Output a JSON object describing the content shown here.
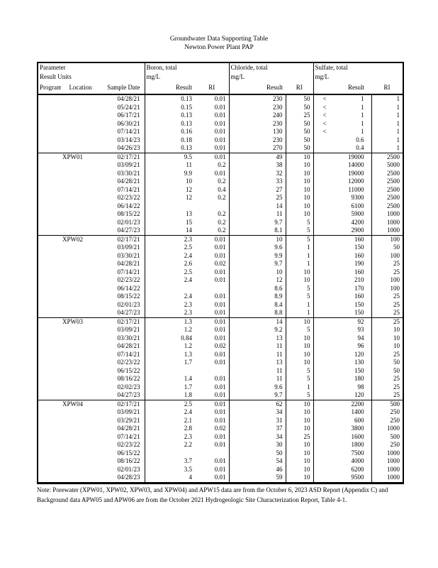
{
  "title": {
    "line1": "Groundwater Data Supporting Table",
    "line2": "Newton Power Plant PAP"
  },
  "table": {
    "header": {
      "parameter": "Parameter",
      "result_units": "Result Units",
      "program_id": "Program ID",
      "location": "Location",
      "sample_date": "Sample Date",
      "result_label": "Result",
      "ri_label": "RI",
      "analytes": [
        {
          "name": "Boron, total",
          "units": "mg/L"
        },
        {
          "name": "Chloride, total",
          "units": "mg/L"
        },
        {
          "name": "Sulfate, total",
          "units": "mg/L"
        }
      ]
    },
    "columns": [
      "program_id",
      "location",
      "sample_date",
      "boron_result",
      "boron_ri",
      "chloride_result",
      "chloride_ri",
      "sulfate_qualifier",
      "sulfate_result",
      "sulfate_ri"
    ],
    "blocks": [
      {
        "location": "",
        "rows": [
          [
            "04/28/21",
            "0.13",
            "0.01",
            "230",
            "50",
            "<",
            "1",
            "1"
          ],
          [
            "05/24/21",
            "0.15",
            "0.01",
            "230",
            "50",
            "<",
            "1",
            "1"
          ],
          [
            "06/17/21",
            "0.13",
            "0.01",
            "240",
            "25",
            "<",
            "1",
            "1"
          ],
          [
            "06/30/21",
            "0.13",
            "0.01",
            "230",
            "50",
            "<",
            "1",
            "1"
          ],
          [
            "07/14/21",
            "0.16",
            "0.01",
            "130",
            "50",
            "<",
            "1",
            "1"
          ],
          [
            "03/14/23",
            "0.18",
            "0.01",
            "230",
            "50",
            "",
            "0.6",
            "1"
          ],
          [
            "04/26/23",
            "0.13",
            "0.01",
            "270",
            "50",
            "",
            "0.4",
            "1"
          ]
        ]
      },
      {
        "location": "XPW01",
        "rows": [
          [
            "02/17/21",
            "9.5",
            "0.01",
            "49",
            "10",
            "",
            "19000",
            "2500"
          ],
          [
            "03/09/21",
            "11",
            "0.2",
            "38",
            "10",
            "",
            "14000",
            "5000"
          ],
          [
            "03/30/21",
            "9.9",
            "0.01",
            "32",
            "10",
            "",
            "19000",
            "2500"
          ],
          [
            "04/28/21",
            "10",
            "0.2",
            "33",
            "10",
            "",
            "12000",
            "2500"
          ],
          [
            "07/14/21",
            "12",
            "0.4",
            "27",
            "10",
            "",
            "11000",
            "2500"
          ],
          [
            "02/23/22",
            "12",
            "0.2",
            "25",
            "10",
            "",
            "9300",
            "2500"
          ],
          [
            "06/14/22",
            "",
            "",
            "14",
            "10",
            "",
            "6100",
            "2500"
          ],
          [
            "08/15/22",
            "13",
            "0.2",
            "11",
            "10",
            "",
            "5900",
            "1000"
          ],
          [
            "02/01/23",
            "15",
            "0.2",
            "9.7",
            "5",
            "",
            "4200",
            "1000"
          ],
          [
            "04/27/23",
            "14",
            "0.2",
            "8.1",
            "5",
            "",
            "2900",
            "1000"
          ]
        ]
      },
      {
        "location": "XPW02",
        "rows": [
          [
            "02/17/21",
            "2.3",
            "0.01",
            "10",
            "5",
            "",
            "160",
            "100"
          ],
          [
            "03/09/21",
            "2.5",
            "0.01",
            "9.6",
            "1",
            "",
            "150",
            "50"
          ],
          [
            "03/30/21",
            "2.4",
            "0.01",
            "9.9",
            "1",
            "",
            "160",
            "100"
          ],
          [
            "04/28/21",
            "2.6",
            "0.02",
            "9.7",
            "1",
            "",
            "190",
            "25"
          ],
          [
            "07/14/21",
            "2.5",
            "0.01",
            "10",
            "10",
            "",
            "160",
            "25"
          ],
          [
            "02/23/22",
            "2.4",
            "0.01",
            "12",
            "10",
            "",
            "210",
            "100"
          ],
          [
            "06/14/22",
            "",
            "",
            "8.6",
            "5",
            "",
            "170",
            "100"
          ],
          [
            "08/15/22",
            "2.4",
            "0.01",
            "8.9",
            "5",
            "",
            "160",
            "25"
          ],
          [
            "02/01/23",
            "2.3",
            "0.01",
            "8.4",
            "1",
            "",
            "150",
            "25"
          ],
          [
            "04/27/23",
            "2.3",
            "0.01",
            "8.8",
            "1",
            "",
            "150",
            "25"
          ]
        ]
      },
      {
        "location": "XPW03",
        "rows": [
          [
            "02/17/21",
            "1.3",
            "0.01",
            "14",
            "10",
            "",
            "92",
            "25"
          ],
          [
            "03/09/21",
            "1.2",
            "0.01",
            "9.2",
            "5",
            "",
            "93",
            "10"
          ],
          [
            "03/30/21",
            "0.84",
            "0.01",
            "13",
            "10",
            "",
            "94",
            "10"
          ],
          [
            "04/28/21",
            "1.2",
            "0.02",
            "11",
            "10",
            "",
            "96",
            "10"
          ],
          [
            "07/14/21",
            "1.3",
            "0.01",
            "11",
            "10",
            "",
            "120",
            "25"
          ],
          [
            "02/23/22",
            "1.7",
            "0.01",
            "13",
            "10",
            "",
            "130",
            "50"
          ],
          [
            "06/15/22",
            "",
            "",
            "11",
            "5",
            "",
            "150",
            "50"
          ],
          [
            "08/16/22",
            "1.4",
            "0.01",
            "11",
            "5",
            "",
            "180",
            "25"
          ],
          [
            "02/02/23",
            "1.7",
            "0.01",
            "9.6",
            "1",
            "",
            "98",
            "25"
          ],
          [
            "04/27/23",
            "1.8",
            "0.01",
            "9.7",
            "5",
            "",
            "120",
            "25"
          ]
        ]
      },
      {
        "location": "XPW04",
        "rows": [
          [
            "02/17/21",
            "2.5",
            "0.01",
            "62",
            "10",
            "",
            "2200",
            "500"
          ],
          [
            "03/09/21",
            "2.4",
            "0.01",
            "34",
            "10",
            "",
            "1400",
            "250"
          ],
          [
            "03/29/21",
            "2.1",
            "0.01",
            "31",
            "10",
            "",
            "600",
            "250"
          ],
          [
            "04/28/21",
            "2.8",
            "0.02",
            "37",
            "10",
            "",
            "3800",
            "1000"
          ],
          [
            "07/14/21",
            "2.3",
            "0.01",
            "34",
            "25",
            "",
            "1600",
            "500"
          ],
          [
            "02/23/22",
            "2.2",
            "0.01",
            "30",
            "10",
            "",
            "1800",
            "250"
          ],
          [
            "06/15/22",
            "",
            "",
            "50",
            "10",
            "",
            "7500",
            "1000"
          ],
          [
            "08/16/22",
            "3.7",
            "0.01",
            "54",
            "10",
            "",
            "4000",
            "1000"
          ],
          [
            "02/01/23",
            "3.5",
            "0.01",
            "46",
            "10",
            "",
            "6200",
            "1000"
          ],
          [
            "04/28/23",
            "4",
            "0.01",
            "59",
            "10",
            "",
            "9500",
            "1000"
          ]
        ]
      }
    ]
  },
  "note": {
    "line1": "Note:  Porewater (XPW01, XPW02, XPW03, and XPW04) and APW15 data are from the October 6, 2023 ASD Report (Appendix C) and",
    "line2": "Background data APW05 and APW06 are from the October 2021 Hydrogeologic Site Characterization Report, Table 4-1."
  }
}
